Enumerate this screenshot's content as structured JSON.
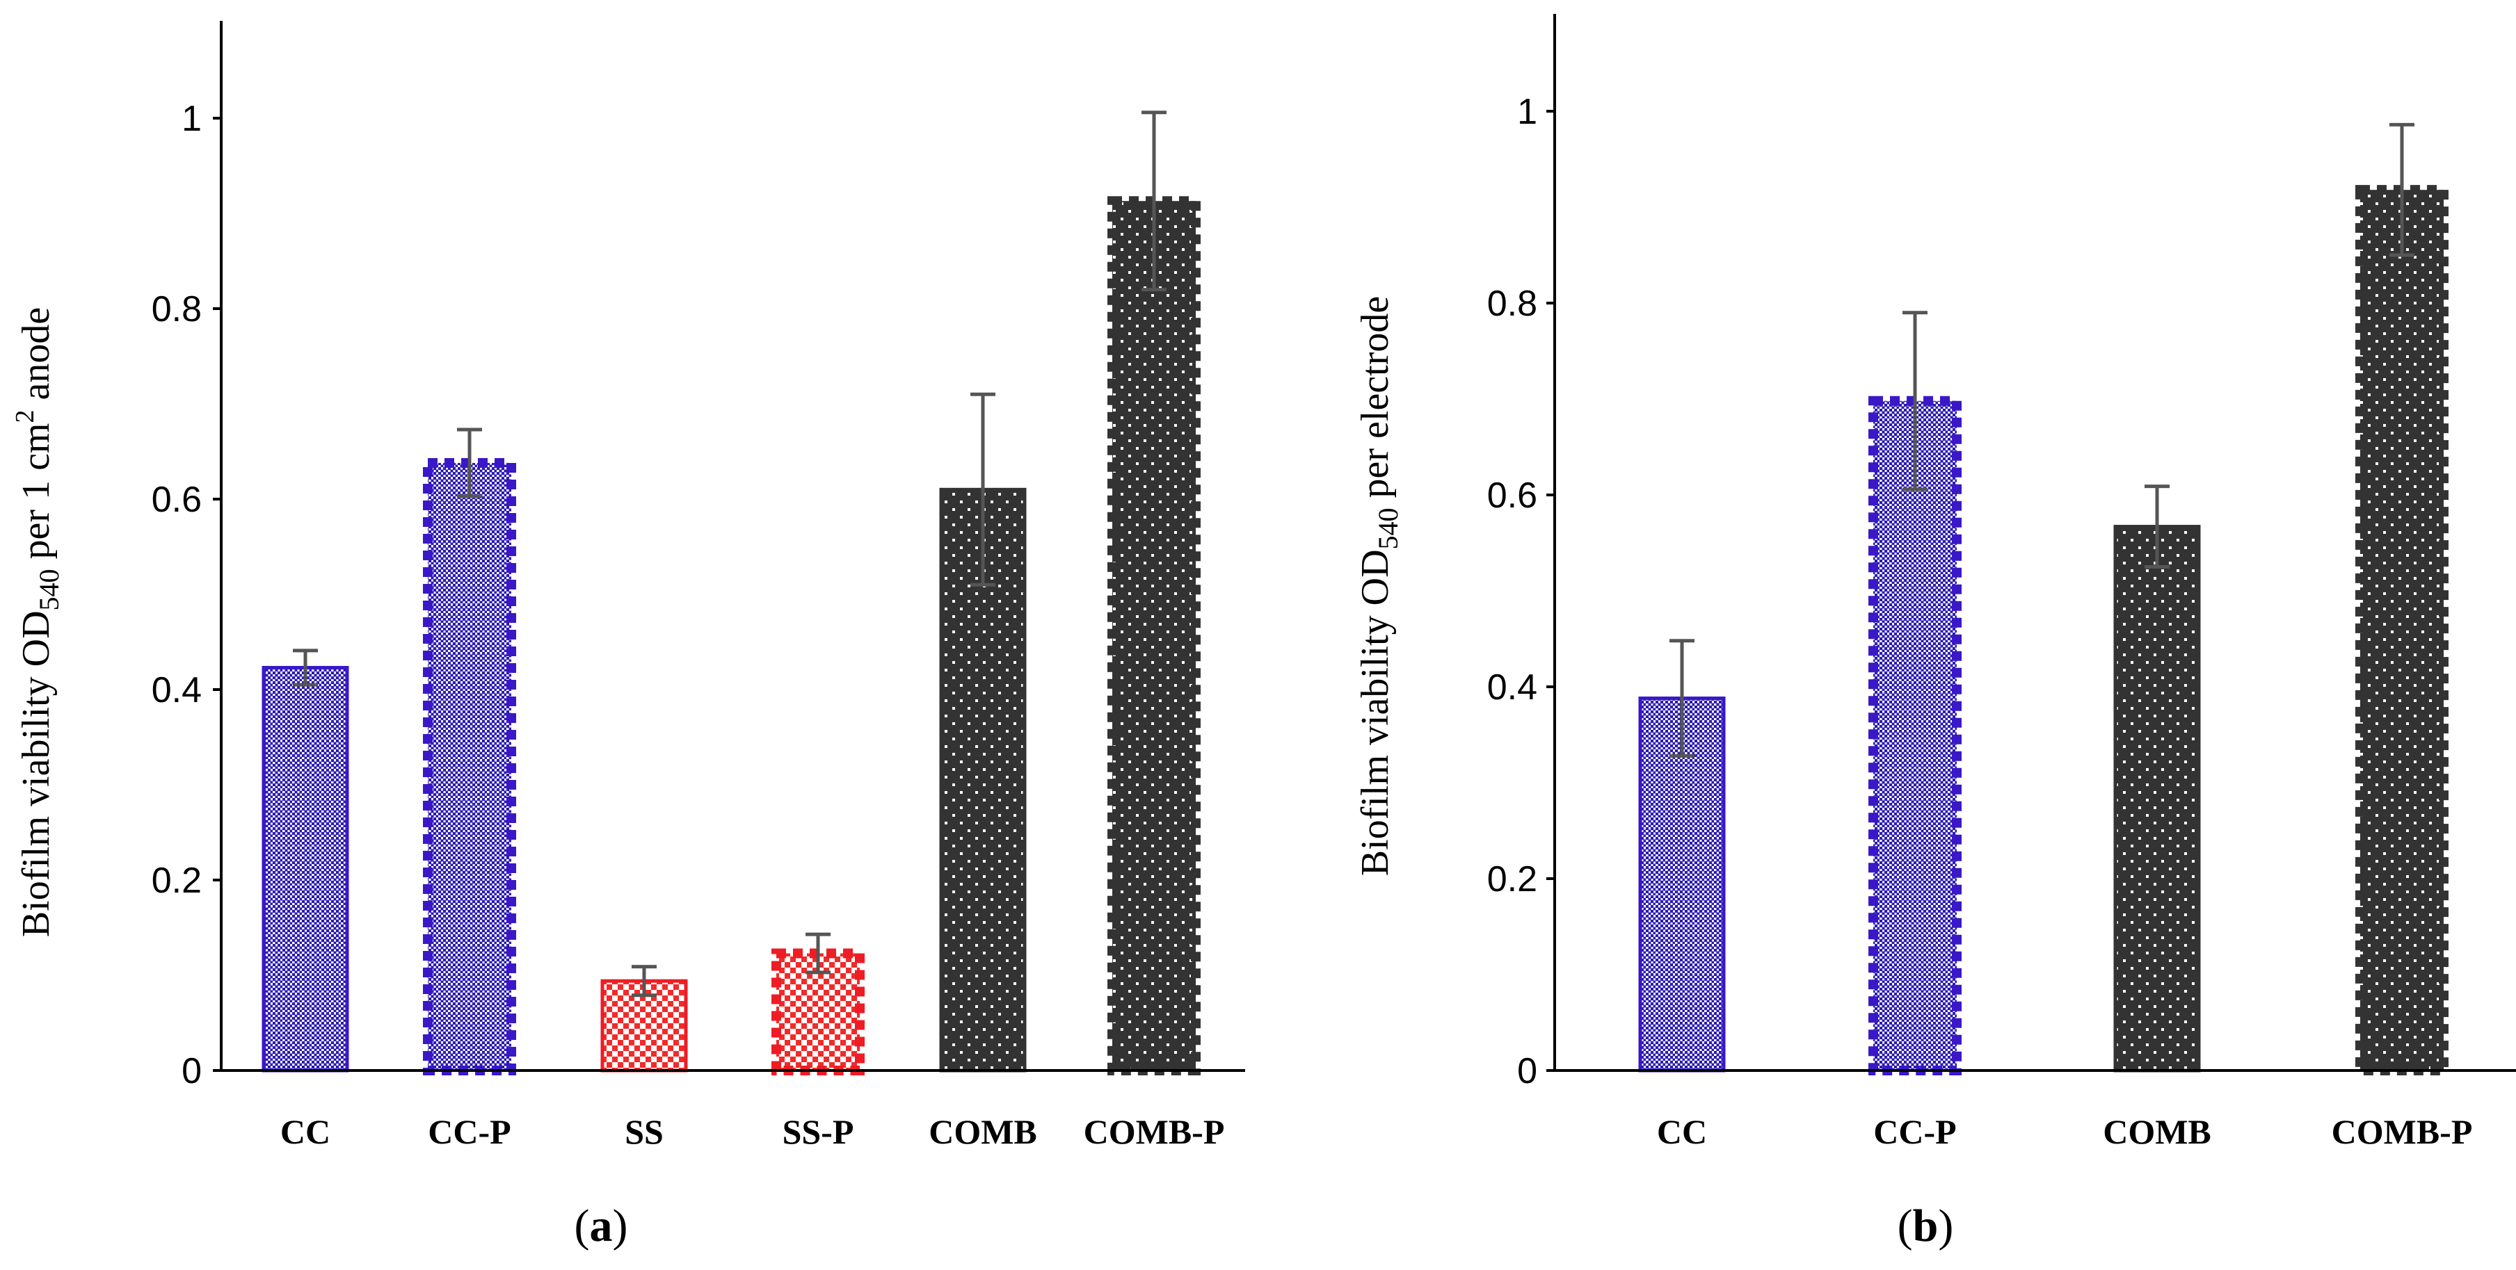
{
  "chart_data": [
    {
      "type": "bar",
      "panel_label": "a",
      "categories": [
        "CC",
        "CC-P",
        "SS",
        "SS-P",
        "COMB",
        "COMB-P"
      ],
      "values": [
        0.423,
        0.638,
        0.094,
        0.123,
        0.61,
        0.913
      ],
      "errors": [
        0.018,
        0.035,
        0.015,
        0.02,
        0.1,
        0.093
      ],
      "materials": [
        "CC",
        "CC",
        "SS",
        "SS",
        "COMB",
        "COMB"
      ],
      "treated": [
        false,
        true,
        false,
        true,
        false,
        true
      ],
      "ylabel": {
        "pre": "Biofilm viability OD",
        "sub": "540",
        "mid": " per 1 cm",
        "sup": "2",
        "post": " anode"
      },
      "ylim": [
        0,
        1.1
      ],
      "yticks": [
        0,
        0.2,
        0.4,
        0.6,
        0.8,
        1
      ],
      "ytick_labels": [
        "0",
        "0.2",
        "0.4",
        "0.6",
        "0.8",
        "1"
      ],
      "grid": false
    },
    {
      "type": "bar",
      "panel_label": "b",
      "categories": [
        "CC",
        "CC-P",
        "COMB",
        "COMB-P"
      ],
      "values": [
        0.388,
        0.698,
        0.567,
        0.918
      ],
      "errors": [
        0.06,
        0.092,
        0.042,
        0.068
      ],
      "materials": [
        "CC",
        "CC",
        "COMB",
        "COMB"
      ],
      "treated": [
        false,
        true,
        false,
        true
      ],
      "ylabel": {
        "pre": "Biofilm viability OD",
        "sub": "540",
        "mid": " per electrode",
        "sup": "",
        "post": ""
      },
      "ylim": [
        0,
        1.1
      ],
      "yticks": [
        0,
        0.2,
        0.4,
        0.6,
        0.8,
        1
      ],
      "ytick_labels": [
        "0",
        "0.2",
        "0.4",
        "0.6",
        "0.8",
        "1"
      ],
      "grid": false
    }
  ],
  "colors": {
    "cc_stroke": "#3a18c8",
    "cc_pattern": "#2a1ab0",
    "ss_stroke": "#ee1c24",
    "ss_pattern": "#f22a2a",
    "comb_fill": "#333333",
    "comb_dot": "#ffffff",
    "error_bar": "#555555",
    "axis": "#000000"
  }
}
